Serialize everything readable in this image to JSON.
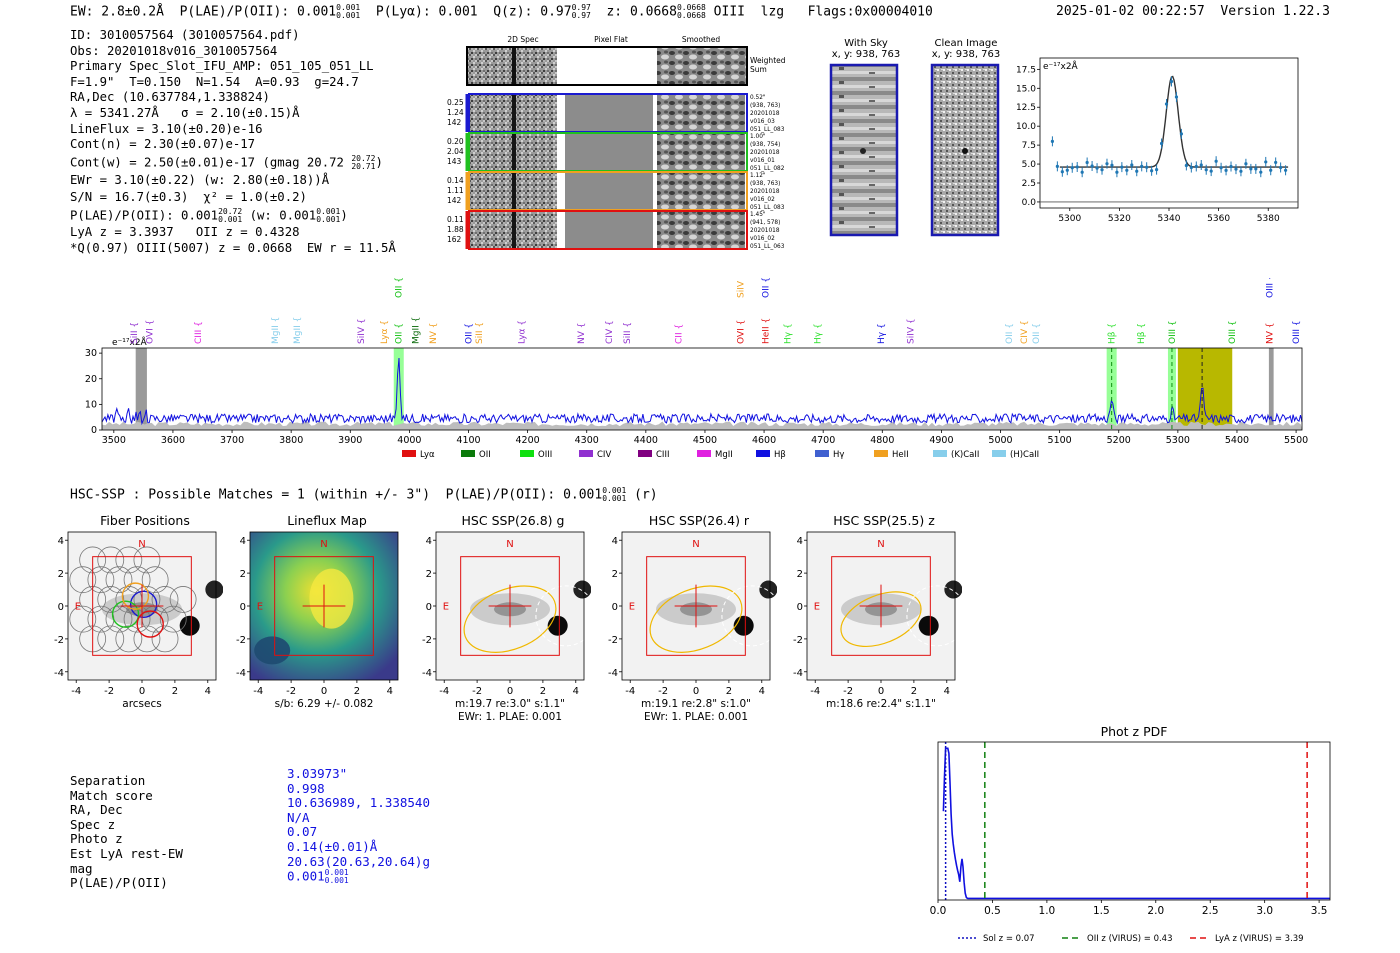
{
  "header": {
    "ew": "EW: 2.8±0.2Å",
    "plae": "P(LAE)/P(OII): 0.001",
    "plae_hi": "0.001",
    "plae_lo": "0.001",
    "plya": "P(Lyα): 0.001",
    "qz": "Q(z): 0.97",
    "qz_hi": "0.97",
    "qz_lo": "0.97",
    "z": "z: 0.0668",
    "z_hi": "0.0668",
    "z_lo": "0.0668",
    "line": "OIII",
    "flags": "lzg   Flags:0x00004010",
    "timestamp": "2025-01-02 00:22:57",
    "version": "Version 1.22.3"
  },
  "info": {
    "lines": [
      "ID: 3010057564 (3010057564.pdf)",
      "Obs: 20201018v016_3010057564",
      "Primary Spec_Slot_IFU_AMP: 051_105_051_LL",
      "F=1.9\"  T=0.150  N=1.54  A=0.93  g=24.7",
      "RA,Dec (10.637784,1.338824)",
      "λ = 5341.27Å   σ = 2.10(±0.15)Å",
      "LineFlux = 3.10(±0.20)e-16",
      "Cont(n) = 2.30(±0.07)e-17"
    ],
    "contw": "Cont(w) = 2.50(±0.01)e-17 (gmag 20.72",
    "contw_hi": "20.72",
    "contw_lo": "20.71",
    "contw_end": ")",
    "ewr": "EWr = 3.10(±0.22) (w: 2.80(±0.18))Å",
    "sn": "S/N = 16.7(±0.3)  χ² = 1.0(±0.2)",
    "plae_a": "P(LAE)/P(OII): 0.001",
    "plae_b": "(w: 0.001",
    "plae_end": ")",
    "lya": "LyA z = 3.3937   OII z = 0.4328",
    "q": "*Q(0.97) OIII(5007) z = 0.0668  EW r = 11.5Å"
  },
  "cutouts": {
    "col_titles": [
      "2D Spec",
      "Pixel Flat",
      "Smoothed"
    ],
    "weighted": "Weighted\nSum",
    "rows": [
      {
        "l1": "0.25",
        "l2": "1.24",
        "l3": "142",
        "r1": "0.52\"",
        "r2": "(938, 763)",
        "r3": "20201018",
        "r4": "v016_03",
        "r5": "051_LL_083",
        "color": "#1a1ad0"
      },
      {
        "l1": "0.20",
        "l2": "2.04",
        "l3": "143",
        "r1": "1.00\"",
        "r2": "(938, 754)",
        "r3": "20201018",
        "r4": "v016_01",
        "r5": "051_LL_082",
        "color": "#20c020"
      },
      {
        "l1": "0.14",
        "l2": "1.11",
        "l3": "142",
        "r1": "1.12\"",
        "r2": "(938, 763)",
        "r3": "20201018",
        "r4": "v016_02",
        "r5": "051_LL_083",
        "color": "#f0a020"
      },
      {
        "l1": "0.11",
        "l2": "1.88",
        "l3": "162",
        "r1": "1.45\"",
        "r2": "(941, 578)",
        "r3": "20201018",
        "r4": "v016_02",
        "r5": "051_LL_063",
        "color": "#e01010"
      }
    ],
    "with_sky": "With Sky",
    "clean": "Clean Image",
    "xy": "x, y: 938, 763"
  },
  "zoom_chart": {
    "type": "line",
    "units": "e⁻¹⁷x2Å",
    "xticks": [
      "5300",
      "5320",
      "5340",
      "5360",
      "5380"
    ],
    "yticks": [
      "0.0",
      "2.5",
      "5.0",
      "7.5",
      "10.0",
      "12.5",
      "15.0",
      "17.5"
    ],
    "xlim": [
      5288,
      5392
    ],
    "ylim": [
      -0.8,
      19
    ]
  },
  "spectrum": {
    "units": "e⁻¹⁷x2Å",
    "xticks": [
      "3500",
      "3600",
      "3700",
      "3800",
      "3900",
      "4000",
      "4100",
      "4200",
      "4300",
      "4400",
      "4500",
      "4600",
      "4700",
      "4800",
      "4900",
      "5000",
      "5100",
      "5200",
      "5300",
      "5400",
      "5500"
    ],
    "yticks": [
      "0",
      "10",
      "20",
      "30"
    ],
    "xlim": [
      3480,
      5510
    ],
    "ylim": [
      0,
      32
    ],
    "lines": [
      {
        "label": "SiII",
        "wave": 3534,
        "color": "#9030d0"
      },
      {
        "label": "OVI",
        "wave": 3560,
        "color": "#9030d0"
      },
      {
        "label": "CIII",
        "wave": 3642,
        "color": "#e020e0"
      },
      {
        "label": "MgII",
        "wave": 3773,
        "color": "#87ceeb"
      },
      {
        "label": "MgII",
        "wave": 3810,
        "color": "#87ceeb"
      },
      {
        "label": "SiIV",
        "wave": 3918,
        "color": "#9030d0"
      },
      {
        "label": "Lyα",
        "wave": 3957,
        "color": "#f0a020"
      },
      {
        "label": "OII",
        "wave": 3982,
        "color": "#10c010"
      },
      {
        "label": "MgII",
        "wave": 4010,
        "color": "#0a6a0a"
      },
      {
        "label": "NV",
        "wave": 4040,
        "color": "#f0a020"
      },
      {
        "label": "OII",
        "wave": 4100,
        "color": "#1010e0"
      },
      {
        "label": "SiII",
        "wave": 4118,
        "color": "#f0a020"
      },
      {
        "label": "Lyα",
        "wave": 4190,
        "color": "#9030d0"
      },
      {
        "label": "NV",
        "wave": 4290,
        "color": "#9030d0"
      },
      {
        "label": "CIV",
        "wave": 4338,
        "color": "#9030d0"
      },
      {
        "label": "SiII",
        "wave": 4368,
        "color": "#9030d0"
      },
      {
        "label": "CII",
        "wave": 4455,
        "color": "#e020e0"
      },
      {
        "label": "OVI",
        "wave": 4560,
        "color": "#e01010"
      },
      {
        "label": "HeII",
        "wave": 4602,
        "color": "#e01010"
      },
      {
        "label": "Hγ",
        "wave": 4640,
        "color": "#30e030"
      },
      {
        "label": "Hγ",
        "wave": 4690,
        "color": "#30e030"
      },
      {
        "label": "Hγ",
        "wave": 4798,
        "color": "#1010e0"
      },
      {
        "label": "SiIV",
        "wave": 4848,
        "color": "#9030d0"
      },
      {
        "label": "OII",
        "wave": 5014,
        "color": "#87ceeb"
      },
      {
        "label": "CIV",
        "wave": 5040,
        "color": "#f0a020"
      },
      {
        "label": "OII",
        "wave": 5060,
        "color": "#87ceeb"
      },
      {
        "label": "Hβ",
        "wave": 5188,
        "color": "#30e030"
      },
      {
        "label": "Hβ",
        "wave": 5238,
        "color": "#30e030"
      },
      {
        "label": "OIII",
        "wave": 5290,
        "color": "#10c010"
      },
      {
        "label": "OIII",
        "wave": 5392,
        "color": "#10c010"
      },
      {
        "label": "NV",
        "wave": 5455,
        "color": "#e01010"
      },
      {
        "label": "OIII",
        "wave": 5500,
        "color": "#1010e0"
      }
    ],
    "top_lines": [
      {
        "label": "OII",
        "wave": 3982,
        "color": "#10c010"
      },
      {
        "label": "SiIV",
        "wave": 4560,
        "color": "#f0a020"
      },
      {
        "label": "OII",
        "wave": 4602,
        "color": "#1010e0"
      },
      {
        "label": "OIII",
        "wave": 5455,
        "color": "#1010e0"
      }
    ],
    "legend": [
      {
        "label": "Lyα",
        "color": "#e01010"
      },
      {
        "label": "OII",
        "color": "#0a7a0a"
      },
      {
        "label": "OIII",
        "color": "#10e010"
      },
      {
        "label": "CIV",
        "color": "#9030d0"
      },
      {
        "label": "CIII",
        "color": "#800080"
      },
      {
        "label": "MgII",
        "color": "#e020e0"
      },
      {
        "label": "Hβ",
        "color": "#1010e0"
      },
      {
        "label": "Hγ",
        "color": "#4060d0"
      },
      {
        "label": "HeII",
        "color": "#f0a020"
      },
      {
        "label": "(K)CaII",
        "color": "#87ceeb"
      },
      {
        "label": "(H)CaII",
        "color": "#87ceeb"
      }
    ]
  },
  "hsc": {
    "headline": "HSC-SSP : Possible Matches = 1 (within +/- 3\")  P(LAE)/P(OII): 0.001",
    "hl_hi": "0.001",
    "hl_lo": "0.001",
    "hl_end": "(r)",
    "panels": [
      {
        "title": "Fiber Positions",
        "cap1": "arcsecs",
        "cap2": ""
      },
      {
        "title": "Lineflux Map",
        "cap1": "s/b: 6.29 +/- 0.082",
        "cap2": ""
      },
      {
        "title": "HSC SSP(26.8) g",
        "cap1": "m:19.7  re:3.0\"  s:1.1\"",
        "cap2": "EWr: 1. PLAE: 0.001"
      },
      {
        "title": "HSC SSP(26.4) r",
        "cap1": "m:19.1  re:2.8\"  s:1.0\"",
        "cap2": "EWr: 1. PLAE: 0.001"
      },
      {
        "title": "HSC SSP(25.5) z",
        "cap1": "m:18.6  re:2.4\"  s:1.1\"",
        "cap2": ""
      }
    ],
    "ticks": [
      "-4",
      "-2",
      "0",
      "2",
      "4"
    ],
    "n": "N",
    "e": "E"
  },
  "details": {
    "labels": [
      "Separation",
      "Match score",
      "RA, Dec",
      "Spec z",
      "Photo z",
      "Est LyA rest-EW",
      "mag",
      "P(LAE)/P(OII)"
    ],
    "values": [
      "3.03973\"",
      "0.998",
      "10.636989, 1.338540",
      "N/A",
      "0.07",
      "0.14(±0.01)Å",
      "20.63(20.63,20.64)g",
      "0.001"
    ],
    "plae_hi": "0.001",
    "plae_lo": "0.001"
  },
  "photz": {
    "title": "Phot z PDF",
    "xticks": [
      "0.0",
      "0.5",
      "1.0",
      "1.5",
      "2.0",
      "2.5",
      "3.0",
      "3.5"
    ],
    "xlim": [
      0,
      3.6
    ],
    "markers": [
      {
        "label": "Sol z = 0.07",
        "z": 0.07,
        "color": "#1010c0",
        "dash": "2,2"
      },
      {
        "label": "OII z (VIRUS) = 0.43",
        "z": 0.43,
        "color": "#108010",
        "dash": "6,4"
      },
      {
        "label": "LyA z (VIRUS) = 3.39",
        "z": 3.39,
        "color": "#e01010",
        "dash": "6,4"
      }
    ]
  }
}
